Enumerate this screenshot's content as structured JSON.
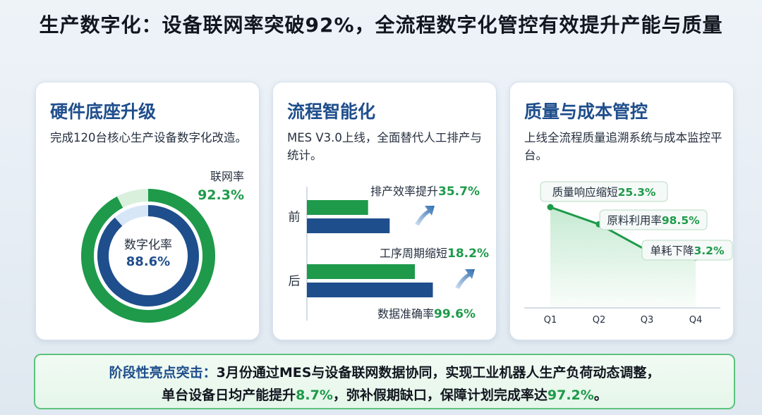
{
  "header": {
    "title": "生产数字化：设备联网率突破92%，全流程数字化管控有效提升产能与质量"
  },
  "cards": [
    {
      "title": "硬件底座升级",
      "desc": "完成120台核心生产设备数字化改造。"
    },
    {
      "title": "流程智能化",
      "desc": "MES V3.0上线，全面替代人工排产与统计。"
    },
    {
      "title": "质量与成本管控",
      "desc": "上线全流程质量追溯系统与成本监控平台。"
    }
  ],
  "colors": {
    "navy": "#1f4e8c",
    "green": "#1e9a4a",
    "light_green": "#d9f0dd",
    "light_blue": "#d6e6f7"
  },
  "chart_data": [
    {
      "type": "pie",
      "subtype": "concentric-donut",
      "series": [
        {
          "name": "联网率",
          "value": 92.3,
          "value_label": "92.3%"
        },
        {
          "name": "数字化率",
          "value": 88.6,
          "value_label": "88.6%"
        }
      ]
    },
    {
      "type": "bar",
      "orientation": "horizontal",
      "categories": [
        "前",
        "后"
      ],
      "series": [
        {
          "values": [
            34,
            60
          ]
        },
        {
          "values": [
            46,
            70
          ]
        }
      ],
      "annotations": [
        {
          "text": "排产效率提升",
          "value": "35.7%"
        },
        {
          "text": "工序周期缩短",
          "value": "18.2%"
        },
        {
          "text": "数据准确率",
          "value": "99.6%"
        }
      ]
    },
    {
      "type": "area",
      "categories": [
        "Q1",
        "Q2",
        "Q3",
        "Q4"
      ],
      "values": [
        100,
        83,
        57,
        50
      ],
      "annotations": [
        {
          "text": "质量响应缩短",
          "value": "25.3%"
        },
        {
          "text": "原料利用率",
          "value": "98.5%"
        },
        {
          "text": "单耗下降",
          "value": "3.2%"
        }
      ]
    }
  ],
  "banner": {
    "prefix": "阶段性亮点突击：",
    "line1": "3月份通过MES与设备联网数据协同，实现工业机器人生产负荷动态调整，",
    "line2_a": "单台设备日均产能提升",
    "line2_v1": "8.7%",
    "line2_b": "，弥补假期缺口，保障计划完成率达",
    "line2_v2": "97.2%",
    "line2_c": "。"
  }
}
